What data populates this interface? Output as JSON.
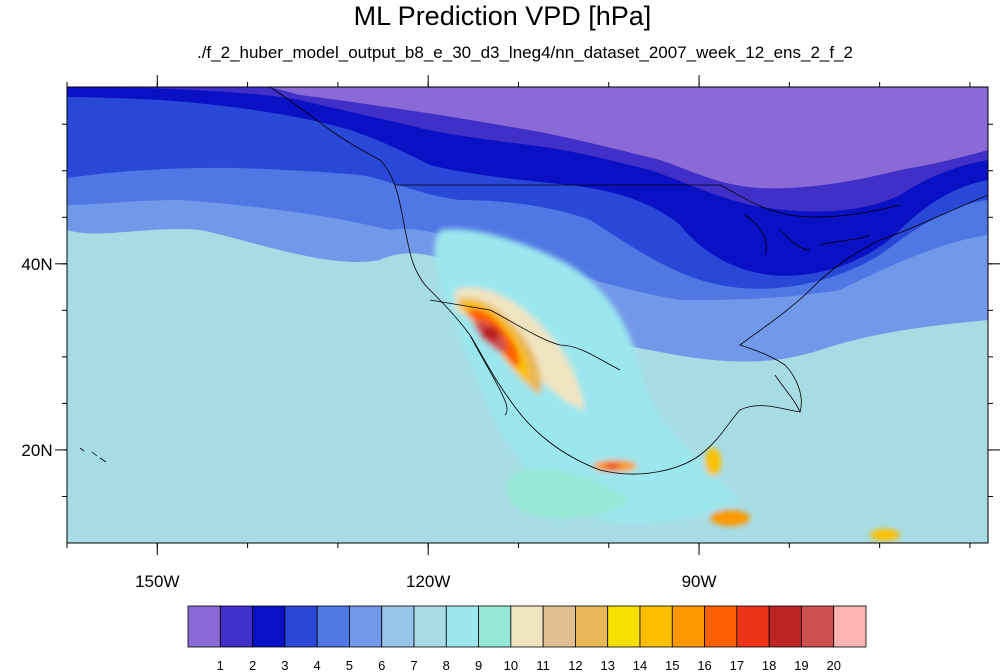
{
  "title": "ML Prediction VPD [hPa]",
  "subtitle": "./f_2_huber_model_output_b8_e_30_d3_lneg4/nn_dataset_2007_week_12_ens_2_f_2",
  "map": {
    "lon_range": [
      -160,
      -58
    ],
    "lat_range": [
      10,
      59
    ],
    "x_ticks": [
      {
        "value": -150,
        "label": "150W"
      },
      {
        "value": -120,
        "label": "120W"
      },
      {
        "value": -90,
        "label": "90W"
      }
    ],
    "y_ticks": [
      {
        "value": 40,
        "label": "40N"
      },
      {
        "value": 20,
        "label": "20N"
      }
    ]
  },
  "colorbar": {
    "colors": [
      "#8a6ad6",
      "#4030c8",
      "#0a10c4",
      "#2a48d8",
      "#4f78e4",
      "#7298ea",
      "#96c4ea",
      "#a8dce4",
      "#9ce6ee",
      "#96e8d6",
      "#f0e4c0",
      "#e0c090",
      "#e8b858",
      "#f8e000",
      "#fcc000",
      "#fc9800",
      "#fc6000",
      "#ec3418",
      "#bc2424",
      "#d05050",
      "#fcb4b4"
    ],
    "labels": [
      "1",
      "2",
      "3",
      "4",
      "5",
      "6",
      "7",
      "8",
      "9",
      "10",
      "11",
      "12",
      "13",
      "14",
      "15",
      "16",
      "17",
      "18",
      "19",
      "20"
    ]
  }
}
